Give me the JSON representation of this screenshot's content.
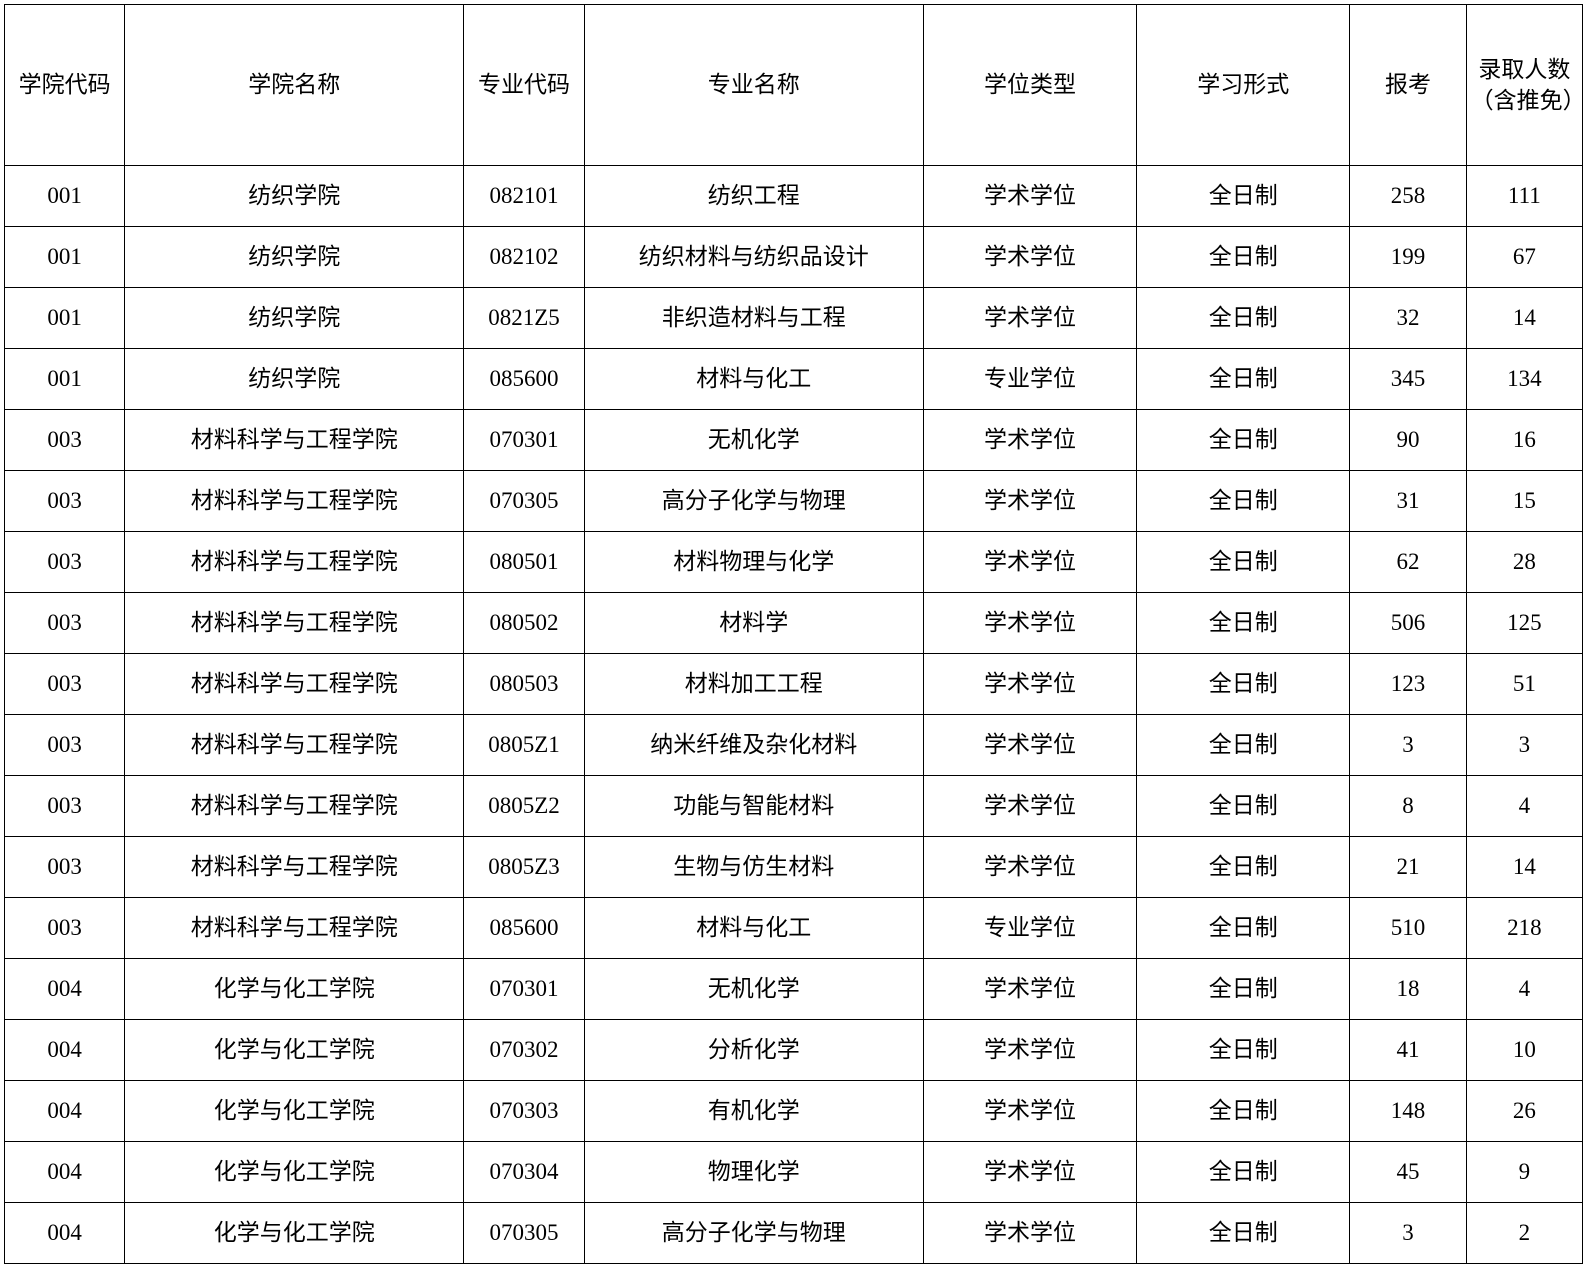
{
  "table": {
    "columns": [
      "学院代码",
      "学院名称",
      "专业代码",
      "专业名称",
      "学位类型",
      "学习形式",
      "报考",
      "录取人数（含推免）"
    ],
    "rows": [
      [
        "001",
        "纺织学院",
        "082101",
        "纺织工程",
        "学术学位",
        "全日制",
        "258",
        "111"
      ],
      [
        "001",
        "纺织学院",
        "082102",
        "纺织材料与纺织品设计",
        "学术学位",
        "全日制",
        "199",
        "67"
      ],
      [
        "001",
        "纺织学院",
        "0821Z5",
        "非织造材料与工程",
        "学术学位",
        "全日制",
        "32",
        "14"
      ],
      [
        "001",
        "纺织学院",
        "085600",
        "材料与化工",
        "专业学位",
        "全日制",
        "345",
        "134"
      ],
      [
        "003",
        "材料科学与工程学院",
        "070301",
        "无机化学",
        "学术学位",
        "全日制",
        "90",
        "16"
      ],
      [
        "003",
        "材料科学与工程学院",
        "070305",
        "高分子化学与物理",
        "学术学位",
        "全日制",
        "31",
        "15"
      ],
      [
        "003",
        "材料科学与工程学院",
        "080501",
        "材料物理与化学",
        "学术学位",
        "全日制",
        "62",
        "28"
      ],
      [
        "003",
        "材料科学与工程学院",
        "080502",
        "材料学",
        "学术学位",
        "全日制",
        "506",
        "125"
      ],
      [
        "003",
        "材料科学与工程学院",
        "080503",
        "材料加工工程",
        "学术学位",
        "全日制",
        "123",
        "51"
      ],
      [
        "003",
        "材料科学与工程学院",
        "0805Z1",
        "纳米纤维及杂化材料",
        "学术学位",
        "全日制",
        "3",
        "3"
      ],
      [
        "003",
        "材料科学与工程学院",
        "0805Z2",
        "功能与智能材料",
        "学术学位",
        "全日制",
        "8",
        "4"
      ],
      [
        "003",
        "材料科学与工程学院",
        "0805Z3",
        "生物与仿生材料",
        "学术学位",
        "全日制",
        "21",
        "14"
      ],
      [
        "003",
        "材料科学与工程学院",
        "085600",
        "材料与化工",
        "专业学位",
        "全日制",
        "510",
        "218"
      ],
      [
        "004",
        "化学与化工学院",
        "070301",
        "无机化学",
        "学术学位",
        "全日制",
        "18",
        "4"
      ],
      [
        "004",
        "化学与化工学院",
        "070302",
        "分析化学",
        "学术学位",
        "全日制",
        "41",
        "10"
      ],
      [
        "004",
        "化学与化工学院",
        "070303",
        "有机化学",
        "学术学位",
        "全日制",
        "148",
        "26"
      ],
      [
        "004",
        "化学与化工学院",
        "070304",
        "物理化学",
        "学术学位",
        "全日制",
        "45",
        "9"
      ],
      [
        "004",
        "化学与化工学院",
        "070305",
        "高分子化学与物理",
        "学术学位",
        "全日制",
        "3",
        "2"
      ]
    ]
  }
}
